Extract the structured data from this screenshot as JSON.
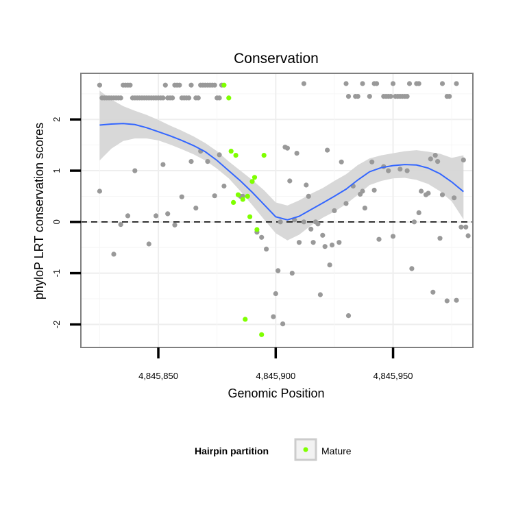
{
  "chart_data": {
    "type": "scatter",
    "title": "Conservation",
    "xlabel": "Genomic Position",
    "ylabel": "phyloP LRT conservation scores",
    "xlim": [
      4845817,
      4845984
    ],
    "ylim": [
      -2.45,
      2.9
    ],
    "x_ticks": [
      4845850,
      4845900,
      4845950
    ],
    "x_tick_labels": [
      "4,845,850",
      "4,845,900",
      "4,845,950"
    ],
    "y_ticks": [
      -2,
      -1,
      0,
      1,
      2
    ],
    "y_tick_labels": [
      "-2",
      "-1",
      "0",
      "1",
      "2"
    ],
    "grid": true,
    "reference_line": {
      "y": 0,
      "style": "dashed"
    },
    "legend": {
      "title": "Hairpin partition",
      "position": "bottom",
      "entries": [
        {
          "label": "Mature",
          "color": "#7fff00"
        }
      ]
    },
    "colors": {
      "other": "#999999",
      "mature": "#7fff00",
      "smooth": "#3366ff",
      "band": "#d4d4d4"
    },
    "series": [
      {
        "name": "",
        "color": "#999999",
        "points": [
          [
            4845825,
            2.67
          ],
          [
            4845826,
            2.42
          ],
          [
            4845827,
            2.42
          ],
          [
            4845828,
            2.42
          ],
          [
            4845829,
            2.42
          ],
          [
            4845830,
            2.42
          ],
          [
            4845831,
            2.42
          ],
          [
            4845832,
            2.42
          ],
          [
            4845833,
            2.42
          ],
          [
            4845834,
            2.42
          ],
          [
            4845835,
            2.67
          ],
          [
            4845836,
            2.67
          ],
          [
            4845837,
            2.67
          ],
          [
            4845838,
            2.67
          ],
          [
            4845839,
            2.42
          ],
          [
            4845840,
            2.42
          ],
          [
            4845841,
            2.42
          ],
          [
            4845842,
            2.42
          ],
          [
            4845843,
            2.42
          ],
          [
            4845844,
            2.42
          ],
          [
            4845845,
            2.42
          ],
          [
            4845846,
            2.42
          ],
          [
            4845847,
            2.42
          ],
          [
            4845848,
            2.42
          ],
          [
            4845849,
            2.42
          ],
          [
            4845850,
            2.42
          ],
          [
            4845851,
            2.42
          ],
          [
            4845852,
            2.42
          ],
          [
            4845853,
            2.67
          ],
          [
            4845854,
            2.42
          ],
          [
            4845855,
            2.42
          ],
          [
            4845856,
            2.42
          ],
          [
            4845857,
            2.67
          ],
          [
            4845858,
            2.67
          ],
          [
            4845859,
            2.67
          ],
          [
            4845860,
            2.42
          ],
          [
            4845861,
            2.42
          ],
          [
            4845862,
            2.42
          ],
          [
            4845863,
            2.42
          ],
          [
            4845864,
            2.67
          ],
          [
            4845866,
            2.42
          ],
          [
            4845867,
            2.42
          ],
          [
            4845868,
            2.67
          ],
          [
            4845869,
            2.67
          ],
          [
            4845870,
            2.67
          ],
          [
            4845871,
            2.67
          ],
          [
            4845872,
            2.67
          ],
          [
            4845873,
            2.67
          ],
          [
            4845874,
            2.67
          ],
          [
            4845875,
            2.42
          ],
          [
            4845876,
            2.42
          ],
          [
            4845877,
            2.67
          ],
          [
            4845912,
            2.7
          ],
          [
            4845930,
            2.7
          ],
          [
            4845931,
            2.45
          ],
          [
            4845934,
            2.45
          ],
          [
            4845935,
            2.45
          ],
          [
            4845937,
            2.7
          ],
          [
            4845940,
            2.45
          ],
          [
            4845942,
            2.7
          ],
          [
            4845943,
            2.7
          ],
          [
            4845946,
            2.45
          ],
          [
            4845947,
            2.45
          ],
          [
            4845948,
            2.45
          ],
          [
            4845949,
            2.45
          ],
          [
            4845950,
            2.7
          ],
          [
            4845951,
            2.45
          ],
          [
            4845952,
            2.45
          ],
          [
            4845953,
            2.45
          ],
          [
            4845954,
            2.45
          ],
          [
            4845955,
            2.45
          ],
          [
            4845956,
            2.45
          ],
          [
            4845957,
            2.7
          ],
          [
            4845960,
            2.7
          ],
          [
            4845961,
            2.7
          ],
          [
            4845971,
            2.7
          ],
          [
            4845973,
            2.45
          ],
          [
            4845974,
            2.45
          ],
          [
            4845977,
            2.7
          ],
          [
            4845825,
            0.6
          ],
          [
            4845831,
            -0.63
          ],
          [
            4845834,
            -0.05
          ],
          [
            4845837,
            0.12
          ],
          [
            4845840,
            1.0
          ],
          [
            4845846,
            -0.43
          ],
          [
            4845849,
            0.12
          ],
          [
            4845852,
            1.12
          ],
          [
            4845854,
            0.16
          ],
          [
            4845857,
            -0.06
          ],
          [
            4845860,
            0.49
          ],
          [
            4845864,
            1.18
          ],
          [
            4845866,
            0.27
          ],
          [
            4845868,
            1.38
          ],
          [
            4845871,
            1.18
          ],
          [
            4845874,
            0.51
          ],
          [
            4845876,
            1.31
          ],
          [
            4845878,
            0.7
          ],
          [
            4845885,
            0.5
          ],
          [
            4845886,
            0.5
          ],
          [
            4845892,
            -0.2
          ],
          [
            4845894,
            -0.3
          ],
          [
            4845896,
            -0.53
          ],
          [
            4845899,
            -1.85
          ],
          [
            4845900,
            -1.4
          ],
          [
            4845901,
            -0.95
          ],
          [
            4845902,
            0.0
          ],
          [
            4845903,
            -1.99
          ],
          [
            4845904,
            1.46
          ],
          [
            4845905,
            1.44
          ],
          [
            4845906,
            0.8
          ],
          [
            4845907,
            -1.0
          ],
          [
            4845908,
            0.04
          ],
          [
            4845909,
            1.34
          ],
          [
            4845910,
            -0.4
          ],
          [
            4845912,
            0.0
          ],
          [
            4845913,
            0.72
          ],
          [
            4845914,
            0.5
          ],
          [
            4845915,
            -0.14
          ],
          [
            4845916,
            -0.4
          ],
          [
            4845917,
            0.0
          ],
          [
            4845918,
            -0.04
          ],
          [
            4845919,
            -1.42
          ],
          [
            4845920,
            -0.26
          ],
          [
            4845921,
            -0.48
          ],
          [
            4845922,
            1.4
          ],
          [
            4845923,
            -0.84
          ],
          [
            4845924,
            -0.45
          ],
          [
            4845925,
            0.22
          ],
          [
            4845927,
            -0.4
          ],
          [
            4845928,
            1.17
          ],
          [
            4845930,
            0.36
          ],
          [
            4845931,
            -1.83
          ],
          [
            4845933,
            0.7
          ],
          [
            4845936,
            0.54
          ],
          [
            4845937,
            0.6
          ],
          [
            4845938,
            0.27
          ],
          [
            4845941,
            1.17
          ],
          [
            4845942,
            0.62
          ],
          [
            4845944,
            -0.34
          ],
          [
            4845946,
            1.08
          ],
          [
            4845948,
            1.0
          ],
          [
            4845950,
            -0.28
          ],
          [
            4845953,
            1.03
          ],
          [
            4845956,
            1.0
          ],
          [
            4845958,
            -0.91
          ],
          [
            4845959,
            0.0
          ],
          [
            4845961,
            0.18
          ],
          [
            4845962,
            0.6
          ],
          [
            4845964,
            0.53
          ],
          [
            4845965,
            0.56
          ],
          [
            4845966,
            1.23
          ],
          [
            4845967,
            -1.37
          ],
          [
            4845968,
            1.3
          ],
          [
            4845969,
            1.18
          ],
          [
            4845970,
            -0.32
          ],
          [
            4845971,
            0.53
          ],
          [
            4845973,
            -1.54
          ],
          [
            4845976,
            0.47
          ],
          [
            4845977,
            -1.53
          ],
          [
            4845979,
            -0.1
          ],
          [
            4845980,
            1.21
          ],
          [
            4845981,
            -0.1
          ],
          [
            4845982,
            -0.27
          ]
        ]
      },
      {
        "name": "Mature",
        "color": "#7fff00",
        "points": [
          [
            4845878,
            2.67
          ],
          [
            4845880,
            2.42
          ],
          [
            4845881,
            1.38
          ],
          [
            4845883,
            1.3
          ],
          [
            4845882,
            0.38
          ],
          [
            4845884,
            0.53
          ],
          [
            4845886,
            0.44
          ],
          [
            4845888,
            0.5
          ],
          [
            4845890,
            0.79
          ],
          [
            4845891,
            0.87
          ],
          [
            4845889,
            0.1
          ],
          [
            4845892,
            -0.15
          ],
          [
            4845895,
            1.3
          ],
          [
            4845887,
            -1.9
          ],
          [
            4845894,
            -2.2
          ]
        ]
      }
    ],
    "smooth": {
      "x": [
        4845825,
        4845830,
        4845835,
        4845840,
        4845845,
        4845850,
        4845855,
        4845860,
        4845865,
        4845870,
        4845875,
        4845880,
        4845885,
        4845890,
        4845895,
        4845900,
        4845905,
        4845910,
        4845915,
        4845920,
        4845925,
        4845930,
        4845935,
        4845940,
        4845945,
        4845950,
        4845955,
        4845960,
        4845965,
        4845970,
        4845975,
        4845980
      ],
      "y": [
        1.89,
        1.91,
        1.92,
        1.9,
        1.84,
        1.76,
        1.68,
        1.59,
        1.49,
        1.37,
        1.2,
        1.0,
        0.8,
        0.58,
        0.34,
        0.1,
        0.04,
        0.11,
        0.24,
        0.37,
        0.5,
        0.64,
        0.82,
        0.98,
        1.06,
        1.1,
        1.12,
        1.11,
        1.05,
        0.94,
        0.78,
        0.59
      ],
      "lower": [
        1.2,
        1.43,
        1.58,
        1.63,
        1.63,
        1.59,
        1.51,
        1.42,
        1.32,
        1.2,
        1.04,
        0.85,
        0.6,
        0.33,
        0.05,
        -0.22,
        -0.36,
        -0.25,
        -0.07,
        0.08,
        0.2,
        0.35,
        0.53,
        0.72,
        0.8,
        0.85,
        0.86,
        0.82,
        0.74,
        0.6,
        0.4,
        0.05
      ],
      "upper": [
        2.56,
        2.39,
        2.26,
        2.17,
        2.09,
        1.99,
        1.88,
        1.78,
        1.67,
        1.54,
        1.38,
        1.18,
        1.0,
        0.82,
        0.62,
        0.38,
        0.32,
        0.42,
        0.55,
        0.66,
        0.8,
        0.93,
        1.11,
        1.24,
        1.3,
        1.34,
        1.38,
        1.4,
        1.37,
        1.33,
        1.25,
        1.3
      ]
    }
  }
}
